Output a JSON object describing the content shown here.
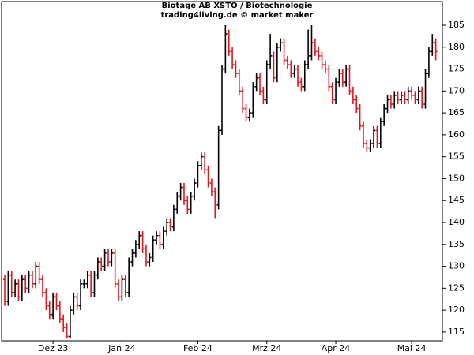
{
  "chart_data": {
    "type": "ohlc",
    "title": "Biotage AB XSTO / Biotechnologie",
    "subtitle": "trading4living.de © market maker",
    "up_color": "#000000",
    "down_color": "#e8141c",
    "categories": [
      null,
      null,
      null,
      null,
      null,
      null,
      null,
      null,
      null,
      null,
      null,
      null,
      null,
      null,
      "Dez 23",
      null,
      null,
      null,
      null,
      null,
      null,
      null,
      null,
      null,
      null,
      null,
      null,
      null,
      null,
      null,
      null,
      null,
      null,
      null,
      "Jan 24",
      null,
      null,
      null,
      null,
      null,
      null,
      null,
      null,
      null,
      null,
      null,
      null,
      null,
      null,
      null,
      null,
      null,
      null,
      null,
      null,
      null,
      "Feb 24",
      null,
      null,
      null,
      null,
      null,
      null,
      null,
      null,
      null,
      null,
      null,
      null,
      null,
      null,
      null,
      null,
      null,
      null,
      null,
      "Mrz 24",
      null,
      null,
      null,
      null,
      null,
      null,
      null,
      null,
      null,
      null,
      null,
      null,
      null,
      null,
      null,
      null,
      null,
      null,
      null,
      "Apr 24",
      null,
      null,
      null,
      null,
      null,
      null,
      null,
      null,
      null,
      null,
      null,
      null,
      null,
      null,
      null,
      null,
      null,
      null,
      null,
      null,
      null,
      "Mai 24",
      null,
      null,
      null,
      null,
      null,
      null,
      null
    ],
    "open": [
      127,
      122,
      128,
      124,
      126,
      123,
      127,
      125,
      128,
      126,
      130,
      127,
      124,
      121,
      119,
      123,
      121,
      118,
      116,
      114,
      120,
      123,
      121,
      126,
      126,
      128,
      124,
      128,
      131,
      130,
      133,
      131,
      133,
      126,
      123,
      127,
      124,
      131,
      133,
      135,
      137,
      134,
      131,
      132,
      136,
      137,
      135,
      138,
      140,
      139,
      143,
      146,
      148,
      145,
      143,
      146,
      149,
      153,
      155,
      152,
      149,
      147,
      144,
      161,
      175,
      183,
      179,
      176,
      174,
      170,
      166,
      164,
      165,
      171,
      173,
      170,
      168,
      176,
      178,
      173,
      180,
      181,
      177,
      176,
      174,
      175,
      172,
      171,
      176,
      178,
      181,
      179,
      178,
      176,
      175,
      171,
      168,
      172,
      174,
      172,
      175,
      170,
      168,
      166,
      162,
      158,
      157,
      158,
      161,
      158,
      163,
      166,
      168,
      167,
      169,
      168,
      169,
      168,
      170,
      169,
      168,
      170,
      167,
      174,
      179,
      181
    ],
    "high": [
      128,
      129,
      129,
      127,
      127,
      128,
      128,
      129,
      129,
      131,
      131,
      128,
      125,
      122,
      124,
      124,
      122,
      119,
      117,
      121,
      124,
      124,
      127,
      127,
      129,
      129,
      129,
      132,
      132,
      134,
      134,
      134,
      134,
      127,
      128,
      128,
      132,
      134,
      136,
      138,
      138,
      135,
      133,
      137,
      138,
      138,
      139,
      141,
      141,
      144,
      147,
      149,
      149,
      146,
      147,
      150,
      154,
      156,
      156,
      153,
      150,
      148,
      162,
      176,
      185,
      184,
      180,
      177,
      175,
      171,
      167,
      166,
      172,
      174,
      174,
      171,
      177,
      183,
      179,
      181,
      182,
      182,
      178,
      177,
      176,
      176,
      173,
      177,
      184,
      185,
      182,
      180,
      179,
      177,
      176,
      172,
      173,
      175,
      175,
      176,
      176,
      171,
      169,
      167,
      163,
      159,
      159,
      162,
      162,
      164,
      167,
      169,
      169,
      170,
      170,
      170,
      170,
      171,
      171,
      170,
      171,
      171,
      175,
      180,
      183,
      182
    ],
    "low": [
      121,
      121,
      123,
      123,
      122,
      122,
      124,
      124,
      125,
      125,
      126,
      123,
      120,
      118,
      118,
      120,
      117,
      115,
      113.5,
      113.5,
      119,
      120,
      120,
      125,
      125,
      123,
      123,
      127,
      129,
      129,
      130,
      130,
      125,
      122,
      122,
      123,
      123,
      130,
      132,
      134,
      133,
      130,
      130,
      131,
      135,
      134,
      134,
      137,
      138,
      138,
      142,
      145,
      144,
      142,
      142,
      145,
      148,
      152,
      151,
      148,
      146,
      141,
      143,
      160,
      174,
      178,
      175,
      173,
      169,
      165,
      163,
      163,
      164,
      170,
      169,
      167,
      167,
      175,
      172,
      172,
      179,
      176,
      175,
      173,
      173,
      171,
      170,
      170,
      175,
      177,
      178,
      177,
      175,
      174,
      170,
      167,
      167,
      171,
      171,
      171,
      169,
      167,
      165,
      161,
      157,
      156,
      156,
      157,
      157,
      157,
      162,
      165,
      166,
      166,
      167,
      167,
      167,
      167,
      168,
      167,
      167,
      166,
      166,
      173,
      178,
      177
    ],
    "close": [
      122,
      128,
      124,
      126,
      123,
      127,
      125,
      128,
      126,
      130,
      127,
      124,
      121,
      119,
      123,
      121,
      118,
      116,
      114,
      120,
      123,
      121,
      126,
      126,
      128,
      124,
      128,
      131,
      130,
      133,
      131,
      133,
      126,
      123,
      127,
      124,
      131,
      133,
      135,
      137,
      134,
      131,
      132,
      136,
      137,
      135,
      138,
      140,
      139,
      143,
      146,
      148,
      145,
      143,
      146,
      149,
      153,
      155,
      152,
      149,
      147,
      144,
      161,
      175,
      183,
      179,
      176,
      174,
      170,
      166,
      164,
      165,
      171,
      173,
      170,
      168,
      176,
      178,
      173,
      180,
      181,
      177,
      176,
      174,
      175,
      172,
      171,
      176,
      178,
      181,
      179,
      178,
      176,
      175,
      171,
      168,
      172,
      174,
      172,
      175,
      170,
      168,
      166,
      162,
      158,
      157,
      158,
      161,
      158,
      163,
      166,
      168,
      167,
      169,
      168,
      169,
      168,
      170,
      169,
      168,
      170,
      167,
      174,
      179,
      181,
      179
    ],
    "ylim": [
      113,
      190.4
    ],
    "yticks": [
      115,
      120,
      125,
      130,
      135,
      140,
      145,
      150,
      155,
      160,
      165,
      170,
      175,
      180,
      185
    ],
    "y_axis_side": "right"
  }
}
